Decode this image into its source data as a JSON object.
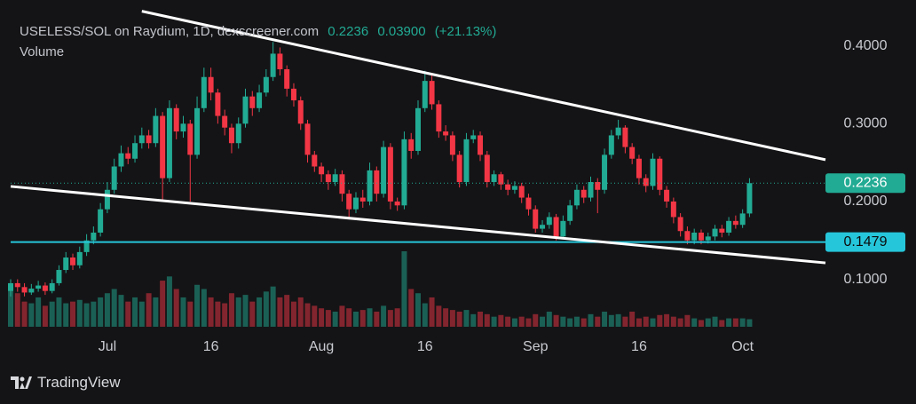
{
  "chart_data": {
    "type": "candlestick",
    "title": "USELESS/SOL on Raydium, 1D, dexscreener.com",
    "last_value": 0.2236,
    "change": {
      "value": 0.039,
      "label": "0.03900"
    },
    "change_pct": {
      "value": 21.13,
      "label": "(+21.13%)"
    },
    "volume_label": "Volume",
    "brand": "TradingView",
    "up_color": "#22ab94",
    "down_color": "#f23645",
    "level": 0.1479,
    "level_color": "#26c6da",
    "trendline_color": "#ffffff",
    "xlim": [
      "06-17",
      "10-13"
    ],
    "ylim": [
      0.039,
      0.459
    ],
    "yticks": [
      {
        "value": 0.1,
        "label": "0.1000"
      },
      {
        "value": 0.2,
        "label": "0.2000"
      },
      {
        "value": 0.3,
        "label": "0.3000"
      },
      {
        "value": 0.4,
        "label": "0.4000"
      }
    ],
    "xticks": [
      {
        "value": "07-01",
        "label": "Jul"
      },
      {
        "value": "07-16",
        "label": "16"
      },
      {
        "value": "08-01",
        "label": "Aug"
      },
      {
        "value": "08-16",
        "label": "16"
      },
      {
        "value": "09-01",
        "label": "Sep"
      },
      {
        "value": "09-16",
        "label": "16"
      },
      {
        "value": "10-01",
        "label": "Oct"
      }
    ],
    "trendlines": [
      {
        "x": [
          "07-06",
          "10-13"
        ],
        "y": [
          0.4446,
          0.2537
        ]
      },
      {
        "x": [
          "06-17",
          "10-13"
        ],
        "y": [
          0.2194,
          0.1211
        ]
      }
    ],
    "x": [
      "06-17",
      "06-18",
      "06-19",
      "06-20",
      "06-21",
      "06-22",
      "06-23",
      "06-24",
      "06-25",
      "06-26",
      "06-27",
      "06-28",
      "06-29",
      "06-30",
      "07-01",
      "07-02",
      "07-03",
      "07-04",
      "07-05",
      "07-06",
      "07-07",
      "07-08",
      "07-09",
      "07-10",
      "07-11",
      "07-12",
      "07-13",
      "07-14",
      "07-15",
      "07-16",
      "07-17",
      "07-18",
      "07-19",
      "07-20",
      "07-21",
      "07-22",
      "07-23",
      "07-24",
      "07-25",
      "07-26",
      "07-27",
      "07-28",
      "07-29",
      "07-30",
      "07-31",
      "08-01",
      "08-02",
      "08-03",
      "08-04",
      "08-05",
      "08-06",
      "08-07",
      "08-08",
      "08-09",
      "08-10",
      "08-11",
      "08-12",
      "08-13",
      "08-14",
      "08-15",
      "08-16",
      "08-17",
      "08-18",
      "08-19",
      "08-20",
      "08-21",
      "08-22",
      "08-23",
      "08-24",
      "08-25",
      "08-26",
      "08-27",
      "08-28",
      "08-29",
      "08-30",
      "08-31",
      "09-01",
      "09-02",
      "09-03",
      "09-04",
      "09-05",
      "09-06",
      "09-07",
      "09-08",
      "09-09",
      "09-10",
      "09-11",
      "09-12",
      "09-13",
      "09-14",
      "09-15",
      "09-16",
      "09-17",
      "09-18",
      "09-19",
      "09-20",
      "09-21",
      "09-22",
      "09-23",
      "09-24",
      "09-25",
      "09-26",
      "09-27",
      "09-28",
      "09-29",
      "09-30",
      "10-01",
      "10-02"
    ],
    "open": [
      0.085,
      0.095,
      0.09,
      0.083,
      0.088,
      0.092,
      0.085,
      0.095,
      0.112,
      0.128,
      0.118,
      0.135,
      0.15,
      0.16,
      0.19,
      0.215,
      0.245,
      0.262,
      0.255,
      0.275,
      0.285,
      0.275,
      0.31,
      0.23,
      0.32,
      0.29,
      0.3,
      0.26,
      0.32,
      0.36,
      0.34,
      0.31,
      0.295,
      0.275,
      0.3,
      0.335,
      0.32,
      0.34,
      0.36,
      0.39,
      0.37,
      0.345,
      0.33,
      0.3,
      0.26,
      0.245,
      0.235,
      0.225,
      0.235,
      0.21,
      0.19,
      0.205,
      0.2,
      0.24,
      0.21,
      0.27,
      0.2,
      0.195,
      0.28,
      0.265,
      0.32,
      0.355,
      0.325,
      0.29,
      0.285,
      0.26,
      0.225,
      0.28,
      0.285,
      0.26,
      0.225,
      0.235,
      0.222,
      0.215,
      0.22,
      0.205,
      0.19,
      0.165,
      0.17,
      0.18,
      0.155,
      0.175,
      0.195,
      0.215,
      0.205,
      0.225,
      0.215,
      0.26,
      0.285,
      0.295,
      0.27,
      0.255,
      0.23,
      0.22,
      0.255,
      0.215,
      0.2,
      0.18,
      0.162,
      0.15,
      0.16,
      0.15,
      0.155,
      0.165,
      0.16,
      0.175,
      0.17,
      0.1846
    ],
    "high": [
      0.1,
      0.1,
      0.095,
      0.094,
      0.098,
      0.096,
      0.1,
      0.118,
      0.135,
      0.133,
      0.142,
      0.158,
      0.168,
      0.198,
      0.225,
      0.255,
      0.272,
      0.27,
      0.285,
      0.295,
      0.292,
      0.32,
      0.315,
      0.33,
      0.325,
      0.31,
      0.305,
      0.335,
      0.372,
      0.372,
      0.345,
      0.318,
      0.3,
      0.308,
      0.345,
      0.342,
      0.35,
      0.37,
      0.405,
      0.398,
      0.375,
      0.352,
      0.335,
      0.305,
      0.265,
      0.25,
      0.24,
      0.242,
      0.24,
      0.215,
      0.212,
      0.215,
      0.25,
      0.245,
      0.278,
      0.275,
      0.205,
      0.29,
      0.288,
      0.33,
      0.368,
      0.362,
      0.33,
      0.298,
      0.29,
      0.265,
      0.288,
      0.292,
      0.29,
      0.265,
      0.24,
      0.238,
      0.228,
      0.226,
      0.224,
      0.21,
      0.195,
      0.176,
      0.186,
      0.184,
      0.182,
      0.202,
      0.222,
      0.22,
      0.232,
      0.23,
      0.268,
      0.292,
      0.305,
      0.298,
      0.275,
      0.26,
      0.235,
      0.262,
      0.258,
      0.22,
      0.205,
      0.185,
      0.168,
      0.165,
      0.164,
      0.16,
      0.17,
      0.17,
      0.18,
      0.182,
      0.19,
      0.23
    ],
    "low": [
      0.078,
      0.084,
      0.078,
      0.08,
      0.084,
      0.08,
      0.082,
      0.092,
      0.108,
      0.112,
      0.114,
      0.13,
      0.145,
      0.155,
      0.185,
      0.21,
      0.238,
      0.248,
      0.25,
      0.268,
      0.268,
      0.27,
      0.2,
      0.225,
      0.28,
      0.282,
      0.2,
      0.255,
      0.315,
      0.33,
      0.3,
      0.285,
      0.262,
      0.268,
      0.295,
      0.31,
      0.315,
      0.335,
      0.355,
      0.362,
      0.335,
      0.322,
      0.292,
      0.25,
      0.238,
      0.225,
      0.215,
      0.22,
      0.2,
      0.178,
      0.185,
      0.192,
      0.195,
      0.2,
      0.205,
      0.19,
      0.188,
      0.19,
      0.255,
      0.26,
      0.315,
      0.318,
      0.282,
      0.278,
      0.252,
      0.218,
      0.22,
      0.275,
      0.252,
      0.218,
      0.22,
      0.215,
      0.208,
      0.21,
      0.198,
      0.182,
      0.16,
      0.16,
      0.165,
      0.15,
      0.152,
      0.17,
      0.19,
      0.198,
      0.2,
      0.185,
      0.21,
      0.255,
      0.28,
      0.262,
      0.248,
      0.222,
      0.212,
      0.215,
      0.208,
      0.192,
      0.172,
      0.155,
      0.145,
      0.145,
      0.145,
      0.146,
      0.15,
      0.154,
      0.156,
      0.165,
      0.166,
      0.18
    ],
    "close": [
      0.095,
      0.09,
      0.083,
      0.088,
      0.092,
      0.085,
      0.095,
      0.112,
      0.128,
      0.118,
      0.135,
      0.15,
      0.16,
      0.19,
      0.215,
      0.245,
      0.262,
      0.255,
      0.275,
      0.285,
      0.275,
      0.31,
      0.23,
      0.32,
      0.29,
      0.3,
      0.26,
      0.32,
      0.36,
      0.34,
      0.31,
      0.295,
      0.275,
      0.3,
      0.335,
      0.32,
      0.34,
      0.36,
      0.39,
      0.37,
      0.345,
      0.33,
      0.3,
      0.26,
      0.245,
      0.235,
      0.225,
      0.235,
      0.21,
      0.19,
      0.205,
      0.2,
      0.24,
      0.21,
      0.27,
      0.2,
      0.195,
      0.28,
      0.265,
      0.32,
      0.355,
      0.325,
      0.29,
      0.285,
      0.26,
      0.225,
      0.28,
      0.285,
      0.26,
      0.225,
      0.235,
      0.222,
      0.215,
      0.22,
      0.205,
      0.19,
      0.165,
      0.17,
      0.18,
      0.155,
      0.175,
      0.195,
      0.215,
      0.205,
      0.225,
      0.215,
      0.26,
      0.285,
      0.295,
      0.27,
      0.255,
      0.23,
      0.22,
      0.255,
      0.215,
      0.2,
      0.18,
      0.162,
      0.15,
      0.16,
      0.15,
      0.155,
      0.165,
      0.16,
      0.175,
      0.17,
      0.1846,
      0.2236
    ],
    "volume": [
      45,
      40,
      30,
      28,
      35,
      25,
      30,
      35,
      28,
      30,
      32,
      28,
      30,
      35,
      40,
      45,
      38,
      30,
      35,
      30,
      40,
      35,
      55,
      60,
      45,
      35,
      30,
      50,
      45,
      35,
      30,
      28,
      40,
      35,
      38,
      30,
      35,
      42,
      48,
      35,
      38,
      30,
      35,
      28,
      25,
      22,
      20,
      18,
      25,
      22,
      18,
      20,
      22,
      18,
      25,
      20,
      22,
      90,
      45,
      40,
      28,
      35,
      25,
      22,
      20,
      18,
      20,
      15,
      18,
      15,
      12,
      14,
      12,
      10,
      12,
      10,
      15,
      12,
      18,
      14,
      12,
      10,
      12,
      10,
      15,
      12,
      18,
      14,
      15,
      12,
      18,
      10,
      12,
      10,
      14,
      15,
      12,
      10,
      14,
      10,
      8,
      10,
      12,
      8,
      10,
      10,
      10,
      9
    ]
  }
}
